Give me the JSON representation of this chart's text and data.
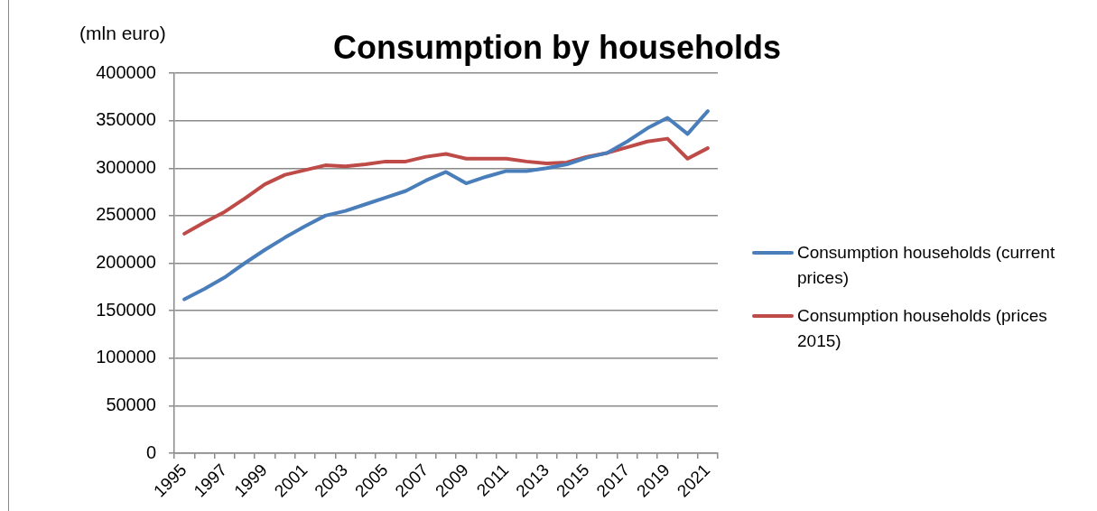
{
  "chart_data": {
    "type": "line",
    "title": "Consumption by households",
    "ylabel": "(mln euro)",
    "categories": [
      "1995",
      null,
      "1997",
      null,
      "1999",
      null,
      "2001",
      null,
      "2003",
      null,
      "2005",
      null,
      "2007",
      null,
      "2009",
      null,
      "2011",
      null,
      "2013",
      null,
      "2015",
      null,
      "2017",
      null,
      "2019",
      null,
      "2021"
    ],
    "series": [
      {
        "name": "Consumption households (current prices)",
        "color": "#4a7ebb",
        "values": [
          162000,
          173000,
          185000,
          200000,
          214000,
          227000,
          239000,
          250000,
          255000,
          262000,
          269000,
          276000,
          287000,
          296000,
          284000,
          291000,
          297000,
          297000,
          300000,
          304000,
          311000,
          316000,
          328000,
          342000,
          353000,
          336000,
          360000
        ]
      },
      {
        "name": "Consumption households (prices 2015)",
        "color": "#be4b48",
        "values": [
          231000,
          243000,
          254000,
          268000,
          283000,
          293000,
          298000,
          303000,
          302000,
          304000,
          307000,
          307000,
          312000,
          315000,
          310000,
          310000,
          310000,
          307000,
          305000,
          306000,
          312000,
          316000,
          322000,
          328000,
          331000,
          310000,
          321000
        ]
      }
    ],
    "ylim": [
      0,
      400000
    ],
    "yticks": [
      0,
      50000,
      100000,
      150000,
      200000,
      250000,
      300000,
      350000,
      400000
    ],
    "grid": "y",
    "legend": "right",
    "marker": "none",
    "line_style": "solid"
  }
}
